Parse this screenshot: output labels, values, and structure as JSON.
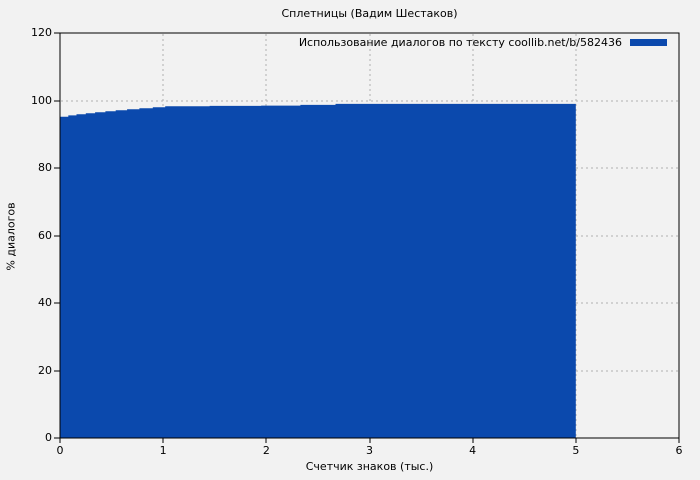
{
  "figure": {
    "background": "#f2f2f2",
    "border_color": "#000000",
    "grid_color": "#b0b0b0",
    "text_color": "#000000"
  },
  "legend": {
    "label": "Использование диалогов по тексту coollib.net/b/582436",
    "swatch_color": "#0b49ad",
    "position": "top-right-inside"
  },
  "chart_data": {
    "type": "area",
    "title": "Сплетницы (Вадим Шестаков)",
    "xlabel": "Счетчик знаков (тыс.)",
    "ylabel": "% диалогов",
    "xlim": [
      0,
      6
    ],
    "ylim": [
      0,
      120
    ],
    "xticks": [
      0,
      1,
      2,
      3,
      4,
      5,
      6
    ],
    "yticks": [
      0,
      20,
      40,
      60,
      80,
      100,
      120
    ],
    "grid": true,
    "grid_style": "dashed",
    "legend_position": "top-right",
    "series": [
      {
        "name": "Использование диалогов по тексту coollib.net/b/582436",
        "color": "#0b49ad",
        "interpolation": "step-after",
        "baseline": 0,
        "points": [
          [
            0.0,
            95.2
          ],
          [
            0.08,
            95.6
          ],
          [
            0.16,
            95.9
          ],
          [
            0.25,
            96.2
          ],
          [
            0.34,
            96.5
          ],
          [
            0.44,
            96.8
          ],
          [
            0.54,
            97.1
          ],
          [
            0.65,
            97.4
          ],
          [
            0.77,
            97.7
          ],
          [
            0.9,
            98.0
          ],
          [
            1.02,
            98.3
          ],
          [
            1.45,
            98.4
          ],
          [
            1.95,
            98.5
          ],
          [
            2.33,
            98.7
          ],
          [
            2.67,
            99.0
          ],
          [
            5.0,
            99.0
          ]
        ],
        "x_end": 5.0
      }
    ]
  }
}
